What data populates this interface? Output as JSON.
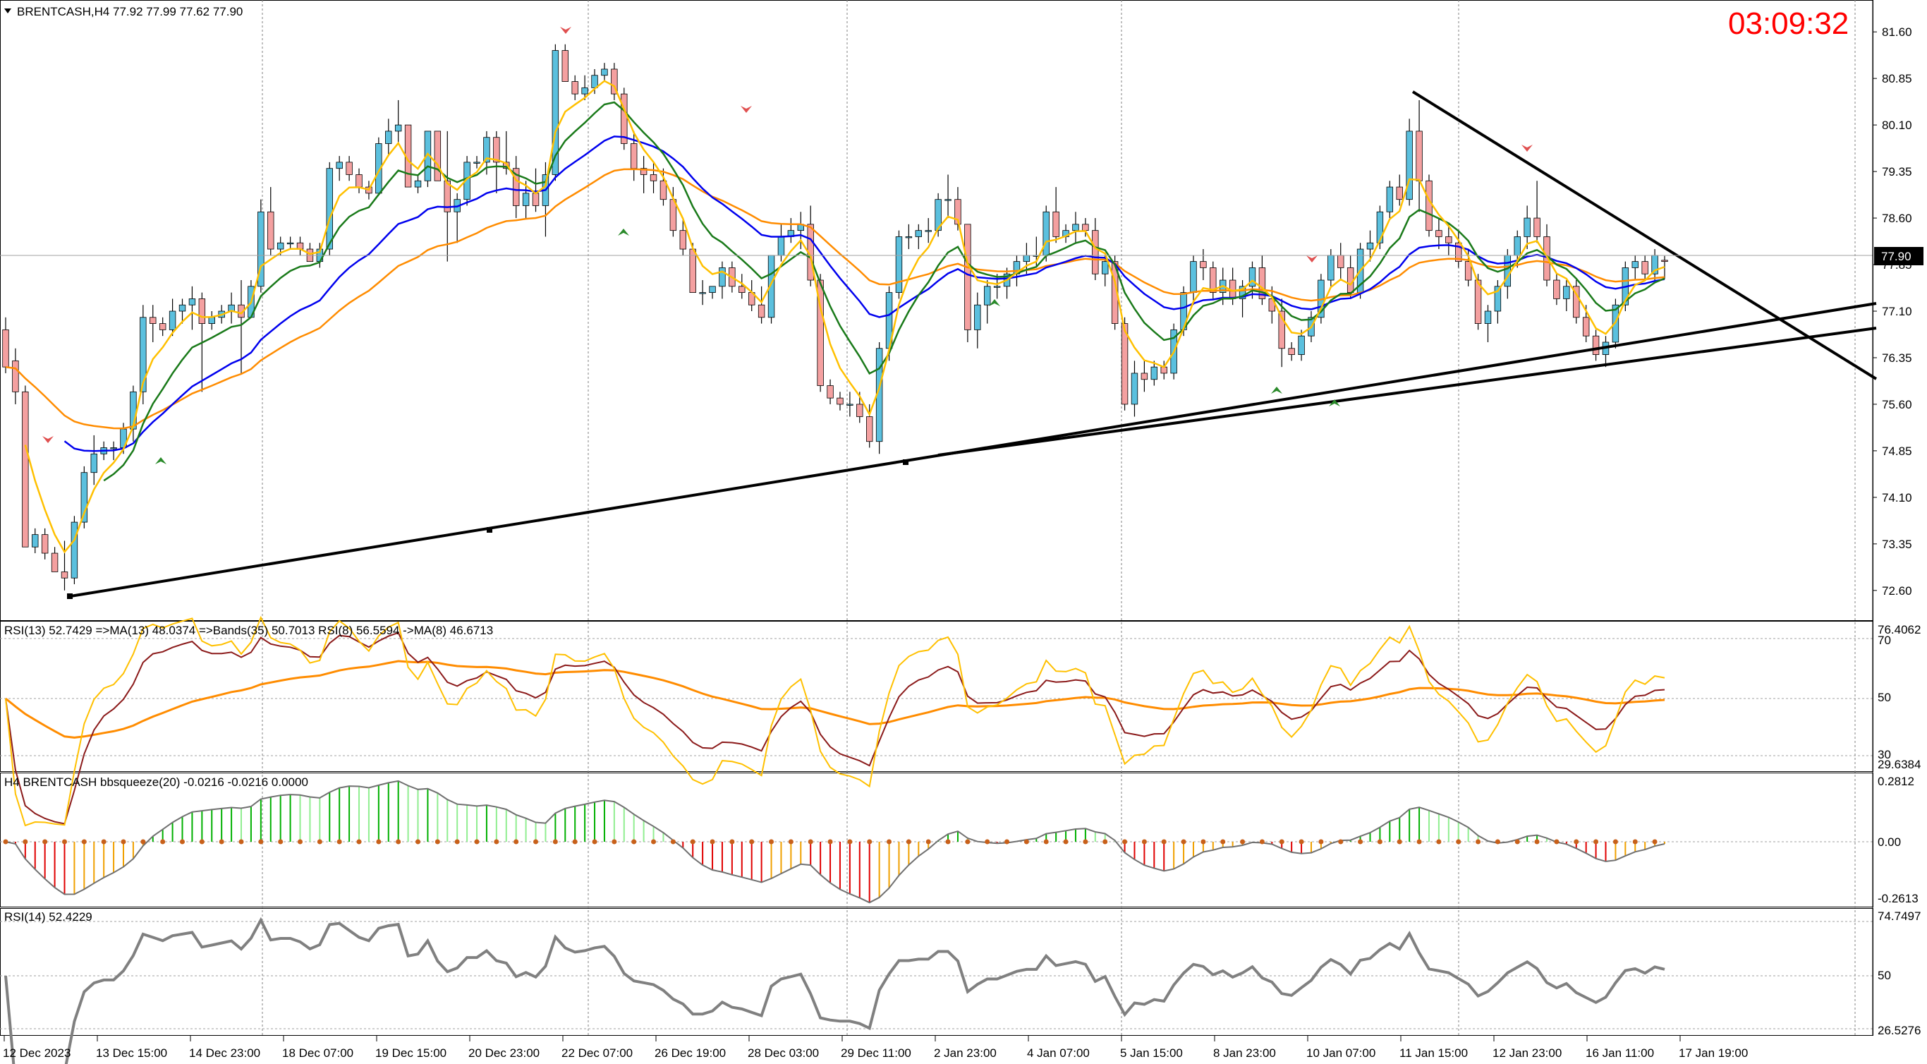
{
  "header": {
    "symbol_line": "BRENTCASH,H4  77.92 77.99 77.62 77.90",
    "countdown": "03:09:32",
    "current_price": "77.90"
  },
  "colors": {
    "bull": "#5bc0de",
    "bear": "#f4a0a0",
    "ma_fast": "#ffc000",
    "ma_mid": "#1a7a1a",
    "ma_slow": "#0000ee",
    "ma_long": "#ff8c00",
    "trend": "#000000",
    "countdown": "#ff0000"
  },
  "price_axis": {
    "labels": [
      "81.60",
      "80.85",
      "80.10",
      "79.35",
      "78.60",
      "77.85",
      "77.10",
      "76.35",
      "75.60",
      "74.85",
      "74.10",
      "73.35",
      "72.60"
    ]
  },
  "time_axis": {
    "labels": [
      "12 Dec 2023",
      "13 Dec 15:00",
      "14 Dec 23:00",
      "18 Dec 07:00",
      "19 Dec 15:00",
      "20 Dec 23:00",
      "22 Dec 07:00",
      "26 Dec 19:00",
      "28 Dec 03:00",
      "29 Dec 11:00",
      "2 Jan 23:00",
      "4 Jan 07:00",
      "5 Jan 15:00",
      "8 Jan 23:00",
      "10 Jan 07:00",
      "11 Jan 15:00",
      "12 Jan 23:00",
      "16 Jan 11:00",
      "17 Jan 19:00"
    ]
  },
  "panel_rsi_bands": {
    "label": "RSI(13) 52.7429  =>MA(13) 48.0374  =>Bands(35) 50.7013  RSI(8) 56.5594  ->MA(8) 46.6713",
    "axis_top": "76.4062",
    "axis_70": "70",
    "axis_50": "50",
    "axis_30": "30",
    "axis_bottom": "29.6384"
  },
  "panel_squeeze": {
    "label": "H4 BRENTCASH bbsqueeze(20) -0.0216 -0.0216 0.0000",
    "axis_top": "0.2812",
    "axis_zero": "0.00",
    "axis_bottom": "-0.2613"
  },
  "panel_rsi14": {
    "label": "RSI(14) 52.4229",
    "axis_top": "74.7497",
    "axis_mid": "50",
    "axis_bottom": "26.5276"
  },
  "chart_data": {
    "type": "candlestick",
    "title": "BRENTCASH,H4",
    "ylim": [
      72.2,
      82.0
    ],
    "candles": [
      [
        76.8,
        77.0,
        76.1,
        76.2
      ],
      [
        76.3,
        76.5,
        75.6,
        75.8
      ],
      [
        75.8,
        75.9,
        73.3,
        73.3
      ],
      [
        73.3,
        73.6,
        73.2,
        73.5
      ],
      [
        73.5,
        73.6,
        73.1,
        73.2
      ],
      [
        73.2,
        73.3,
        72.9,
        72.9
      ],
      [
        72.9,
        73.4,
        72.6,
        72.8
      ],
      [
        72.8,
        73.8,
        72.7,
        73.7
      ],
      [
        73.7,
        74.6,
        73.6,
        74.5
      ],
      [
        74.5,
        75.1,
        74.3,
        74.8
      ],
      [
        74.8,
        75.0,
        74.7,
        74.9
      ],
      [
        74.9,
        75.0,
        74.7,
        74.9
      ],
      [
        74.9,
        75.3,
        74.8,
        75.2
      ],
      [
        75.2,
        75.9,
        75.0,
        75.8
      ],
      [
        75.8,
        77.2,
        75.6,
        77.0
      ],
      [
        77.0,
        77.2,
        76.6,
        76.9
      ],
      [
        76.9,
        77.0,
        76.7,
        76.8
      ],
      [
        76.8,
        77.3,
        76.7,
        77.1
      ],
      [
        77.1,
        77.3,
        76.9,
        77.2
      ],
      [
        77.2,
        77.5,
        76.8,
        77.3
      ],
      [
        77.3,
        77.4,
        75.8,
        76.9
      ],
      [
        76.9,
        77.1,
        76.8,
        77.0
      ],
      [
        77.0,
        77.2,
        76.9,
        77.1
      ],
      [
        77.1,
        77.4,
        76.9,
        77.2
      ],
      [
        77.2,
        77.6,
        76.1,
        77.0
      ],
      [
        77.0,
        77.6,
        77.0,
        77.5
      ],
      [
        77.5,
        78.9,
        77.4,
        78.7
      ],
      [
        78.7,
        79.1,
        78.0,
        78.1
      ],
      [
        78.1,
        78.3,
        78.0,
        78.2
      ],
      [
        78.2,
        78.3,
        78.1,
        78.2
      ],
      [
        78.2,
        78.3,
        78.0,
        78.1
      ],
      [
        78.1,
        78.2,
        77.9,
        77.9
      ],
      [
        77.9,
        78.2,
        77.8,
        78.1
      ],
      [
        78.1,
        79.5,
        78.0,
        79.4
      ],
      [
        79.4,
        79.6,
        79.2,
        79.5
      ],
      [
        79.5,
        79.6,
        79.2,
        79.3
      ],
      [
        79.3,
        79.4,
        79.0,
        79.1
      ],
      [
        79.1,
        79.2,
        78.9,
        79.0
      ],
      [
        79.0,
        79.9,
        79.0,
        79.8
      ],
      [
        79.8,
        80.2,
        79.6,
        80.0
      ],
      [
        80.0,
        80.5,
        79.8,
        80.1
      ],
      [
        80.1,
        80.1,
        79.1,
        79.1
      ],
      [
        79.1,
        79.3,
        79.0,
        79.2
      ],
      [
        79.2,
        80.0,
        79.1,
        80.0
      ],
      [
        80.0,
        80.0,
        79.2,
        79.2
      ],
      [
        79.2,
        80.0,
        77.9,
        78.7
      ],
      [
        78.7,
        79.0,
        78.2,
        78.9
      ],
      [
        78.9,
        79.6,
        78.8,
        79.5
      ],
      [
        79.5,
        79.6,
        79.4,
        79.5
      ],
      [
        79.5,
        80.0,
        79.3,
        79.9
      ],
      [
        79.9,
        80.0,
        79.0,
        79.5
      ],
      [
        79.5,
        80.0,
        79.3,
        79.4
      ],
      [
        79.4,
        79.6,
        78.6,
        78.8
      ],
      [
        78.8,
        79.2,
        78.6,
        79.0
      ],
      [
        79.0,
        79.4,
        78.7,
        78.8
      ],
      [
        78.8,
        79.5,
        78.3,
        79.3
      ],
      [
        79.3,
        81.4,
        79.2,
        81.3
      ],
      [
        81.3,
        81.4,
        80.8,
        80.8
      ],
      [
        80.8,
        80.9,
        80.5,
        80.6
      ],
      [
        80.6,
        80.9,
        80.5,
        80.7
      ],
      [
        80.7,
        81.0,
        80.6,
        80.9
      ],
      [
        80.9,
        81.1,
        80.8,
        81.0
      ],
      [
        81.0,
        81.1,
        80.5,
        80.6
      ],
      [
        80.6,
        80.7,
        79.7,
        79.8
      ],
      [
        79.8,
        80.0,
        79.2,
        79.4
      ],
      [
        79.4,
        79.6,
        79.0,
        79.3
      ],
      [
        79.3,
        79.5,
        79.0,
        79.2
      ],
      [
        79.2,
        79.4,
        78.8,
        78.9
      ],
      [
        78.9,
        79.1,
        78.3,
        78.4
      ],
      [
        78.4,
        78.6,
        78.0,
        78.1
      ],
      [
        78.1,
        78.2,
        77.4,
        77.4
      ],
      [
        77.4,
        77.6,
        77.2,
        77.4
      ],
      [
        77.4,
        77.5,
        77.3,
        77.5
      ],
      [
        77.5,
        77.9,
        77.3,
        77.8
      ],
      [
        77.8,
        77.9,
        77.4,
        77.5
      ],
      [
        77.5,
        77.7,
        77.3,
        77.4
      ],
      [
        77.4,
        77.6,
        77.1,
        77.2
      ],
      [
        77.2,
        77.5,
        76.9,
        77.0
      ],
      [
        77.0,
        78.0,
        76.9,
        78.0
      ],
      [
        78.0,
        78.5,
        77.9,
        78.3
      ],
      [
        78.3,
        78.6,
        78.2,
        78.4
      ],
      [
        78.4,
        78.7,
        78.1,
        78.5
      ],
      [
        78.5,
        78.8,
        77.5,
        77.6
      ],
      [
        77.6,
        77.7,
        75.8,
        75.9
      ],
      [
        75.9,
        76.0,
        75.6,
        75.7
      ],
      [
        75.7,
        75.8,
        75.5,
        75.6
      ],
      [
        75.6,
        75.8,
        75.4,
        75.6
      ],
      [
        75.6,
        75.8,
        75.3,
        75.4
      ],
      [
        75.4,
        75.6,
        74.9,
        75.0
      ],
      [
        75.0,
        76.6,
        74.8,
        76.5
      ],
      [
        76.5,
        77.5,
        76.3,
        77.4
      ],
      [
        77.4,
        78.4,
        77.3,
        78.3
      ],
      [
        78.3,
        78.5,
        78.1,
        78.3
      ],
      [
        78.3,
        78.5,
        78.1,
        78.4
      ],
      [
        78.4,
        78.6,
        78.2,
        78.4
      ],
      [
        78.4,
        79.0,
        78.3,
        78.9
      ],
      [
        78.9,
        79.3,
        78.6,
        78.9
      ],
      [
        78.9,
        79.1,
        78.4,
        78.5
      ],
      [
        78.5,
        78.5,
        76.6,
        76.8
      ],
      [
        76.8,
        77.4,
        76.5,
        77.2
      ],
      [
        77.2,
        77.6,
        76.9,
        77.5
      ],
      [
        77.5,
        77.7,
        77.3,
        77.5
      ],
      [
        77.5,
        77.8,
        77.3,
        77.7
      ],
      [
        77.7,
        78.0,
        77.5,
        77.9
      ],
      [
        77.9,
        78.2,
        77.7,
        78.0
      ],
      [
        78.0,
        78.3,
        77.8,
        78.0
      ],
      [
        78.0,
        78.8,
        77.9,
        78.7
      ],
      [
        78.7,
        79.1,
        78.2,
        78.3
      ],
      [
        78.3,
        78.5,
        78.2,
        78.4
      ],
      [
        78.4,
        78.7,
        78.2,
        78.5
      ],
      [
        78.5,
        78.6,
        78.3,
        78.4
      ],
      [
        78.4,
        78.6,
        77.6,
        77.7
      ],
      [
        77.7,
        78.0,
        77.5,
        77.9
      ],
      [
        77.9,
        78.0,
        76.8,
        76.9
      ],
      [
        76.9,
        77.0,
        75.5,
        75.6
      ],
      [
        75.6,
        76.3,
        75.4,
        76.1
      ],
      [
        76.1,
        76.3,
        75.8,
        76.0
      ],
      [
        76.0,
        76.3,
        75.9,
        76.2
      ],
      [
        76.2,
        76.3,
        76.0,
        76.1
      ],
      [
        76.1,
        76.9,
        76.0,
        76.8
      ],
      [
        76.8,
        77.5,
        76.7,
        77.4
      ],
      [
        77.4,
        78.0,
        77.2,
        77.9
      ],
      [
        77.9,
        78.1,
        77.6,
        77.8
      ],
      [
        77.8,
        77.9,
        77.3,
        77.4
      ],
      [
        77.4,
        77.8,
        77.2,
        77.6
      ],
      [
        77.6,
        77.8,
        77.2,
        77.3
      ],
      [
        77.3,
        77.6,
        77.0,
        77.5
      ],
      [
        77.5,
        77.9,
        77.3,
        77.8
      ],
      [
        77.8,
        78.0,
        77.2,
        77.3
      ],
      [
        77.3,
        77.5,
        76.9,
        77.1
      ],
      [
        77.1,
        77.3,
        76.2,
        76.5
      ],
      [
        76.5,
        76.6,
        76.3,
        76.4
      ],
      [
        76.4,
        76.8,
        76.3,
        76.7
      ],
      [
        76.7,
        77.1,
        76.6,
        77.0
      ],
      [
        77.0,
        77.7,
        76.9,
        77.6
      ],
      [
        77.6,
        78.1,
        77.5,
        78.0
      ],
      [
        78.0,
        78.2,
        77.6,
        77.8
      ],
      [
        77.8,
        78.0,
        77.3,
        77.4
      ],
      [
        77.4,
        78.2,
        77.3,
        78.1
      ],
      [
        78.1,
        78.4,
        77.9,
        78.2
      ],
      [
        78.2,
        78.8,
        78.1,
        78.7
      ],
      [
        78.7,
        79.2,
        78.6,
        79.1
      ],
      [
        79.1,
        79.3,
        78.8,
        78.9
      ],
      [
        78.9,
        80.2,
        78.8,
        80.0
      ],
      [
        80.0,
        80.5,
        78.7,
        79.2
      ],
      [
        79.2,
        79.3,
        78.3,
        78.4
      ],
      [
        78.4,
        78.6,
        78.1,
        78.3
      ],
      [
        78.3,
        78.5,
        78.0,
        78.2
      ],
      [
        78.2,
        78.4,
        77.8,
        77.9
      ],
      [
        77.9,
        78.1,
        77.5,
        77.6
      ],
      [
        77.6,
        77.7,
        76.8,
        76.9
      ],
      [
        76.9,
        77.2,
        76.6,
        77.1
      ],
      [
        77.1,
        77.6,
        76.9,
        77.5
      ],
      [
        77.5,
        78.1,
        77.3,
        78.0
      ],
      [
        78.0,
        78.4,
        77.8,
        78.3
      ],
      [
        78.3,
        78.8,
        78.1,
        78.6
      ],
      [
        78.6,
        79.2,
        78.2,
        78.3
      ],
      [
        78.3,
        78.5,
        77.5,
        77.6
      ],
      [
        77.6,
        77.7,
        77.2,
        77.3
      ],
      [
        77.3,
        77.6,
        77.1,
        77.5
      ],
      [
        77.5,
        77.6,
        76.9,
        77.0
      ],
      [
        77.0,
        77.2,
        76.6,
        76.7
      ],
      [
        76.7,
        76.8,
        76.3,
        76.4
      ],
      [
        76.4,
        76.7,
        76.2,
        76.6
      ],
      [
        76.6,
        77.3,
        76.5,
        77.2
      ],
      [
        77.2,
        77.9,
        77.1,
        77.8
      ],
      [
        77.8,
        78.0,
        77.6,
        77.9
      ],
      [
        77.9,
        78.0,
        77.6,
        77.7
      ],
      [
        77.7,
        78.1,
        77.6,
        78.0
      ],
      [
        77.92,
        77.99,
        77.62,
        77.9
      ]
    ]
  }
}
